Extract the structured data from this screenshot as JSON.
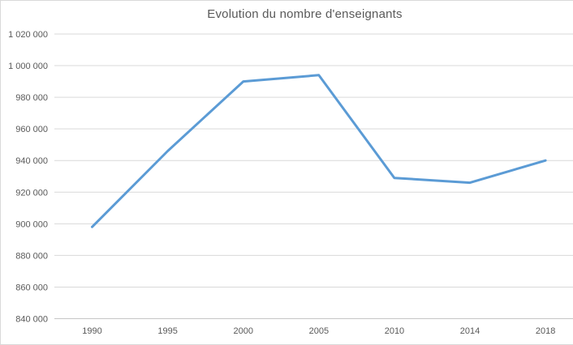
{
  "chart_data": {
    "type": "line",
    "title": "Evolution du nombre d'enseignants",
    "categories": [
      "1990",
      "1995",
      "2000",
      "2005",
      "2010",
      "2014",
      "2018"
    ],
    "series": [
      {
        "values": [
          898000,
          946000,
          990000,
          994000,
          929000,
          926000,
          940000
        ]
      }
    ],
    "ylim": [
      840000,
      1020000
    ],
    "y_tick_step": 20000,
    "y_tick_labels": [
      "840 000",
      "860 000",
      "880 000",
      "900 000",
      "920 000",
      "940 000",
      "960 000",
      "980 000",
      "1 000 000",
      "1 020 000"
    ],
    "xlabel": "",
    "ylabel": "",
    "grid": true,
    "legend": "none"
  },
  "colors": {
    "line": "#5B9BD5",
    "gridline": "#D9D9D9",
    "axis_line": "#C6C6C6",
    "text": "#595959",
    "background": "#FFFFFF",
    "frame_border": "#D9D9D9"
  }
}
